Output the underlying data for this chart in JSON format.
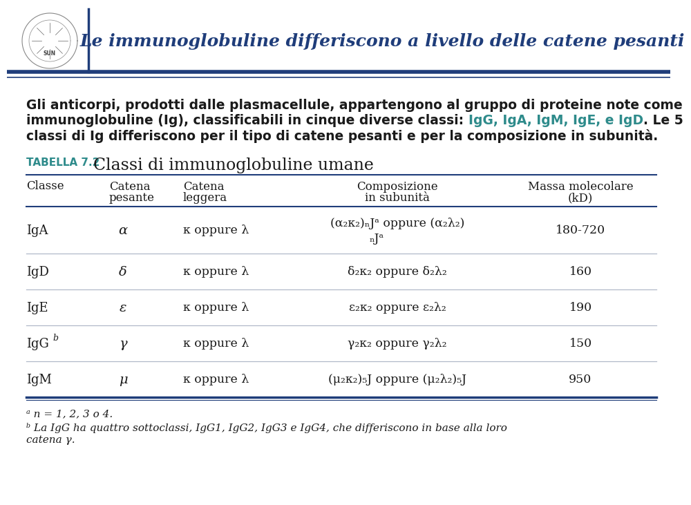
{
  "title": "Le immunoglobuline differiscono a livello delle catene pesanti",
  "title_color": "#1f3d7a",
  "teal_color": "#2e8b8b",
  "dark_color": "#1a1a1a",
  "line_color": "#1f3d7a",
  "bg_color": "#ffffff",
  "intro_line1": "Gli anticorpi, prodotti dalle plasmacellule, appartengono al gruppo di proteine note come",
  "intro_line2a": "immunoglobuline (Ig), classificabili in cinque diverse classi: ",
  "intro_line2b": "IgG, IgA, IgM, IgE, e IgD",
  "intro_line2c": ". Le 5",
  "intro_line3": "classi di Ig differiscono per il tipo di catene pesanti e per la composizione in subunità.",
  "table_label": "TABELLA 7.2",
  "table_title": "Classi di immunoglobuline umane",
  "footnote_a": "ᵃ n = 1, 2, 3 o 4.",
  "footnote_b1": "ᵇ La IgG ha quattro sottoclassi, IgG1, IgG2, IgG3 e IgG4, che differiscono in base alla loro",
  "footnote_b2": "catena γ."
}
